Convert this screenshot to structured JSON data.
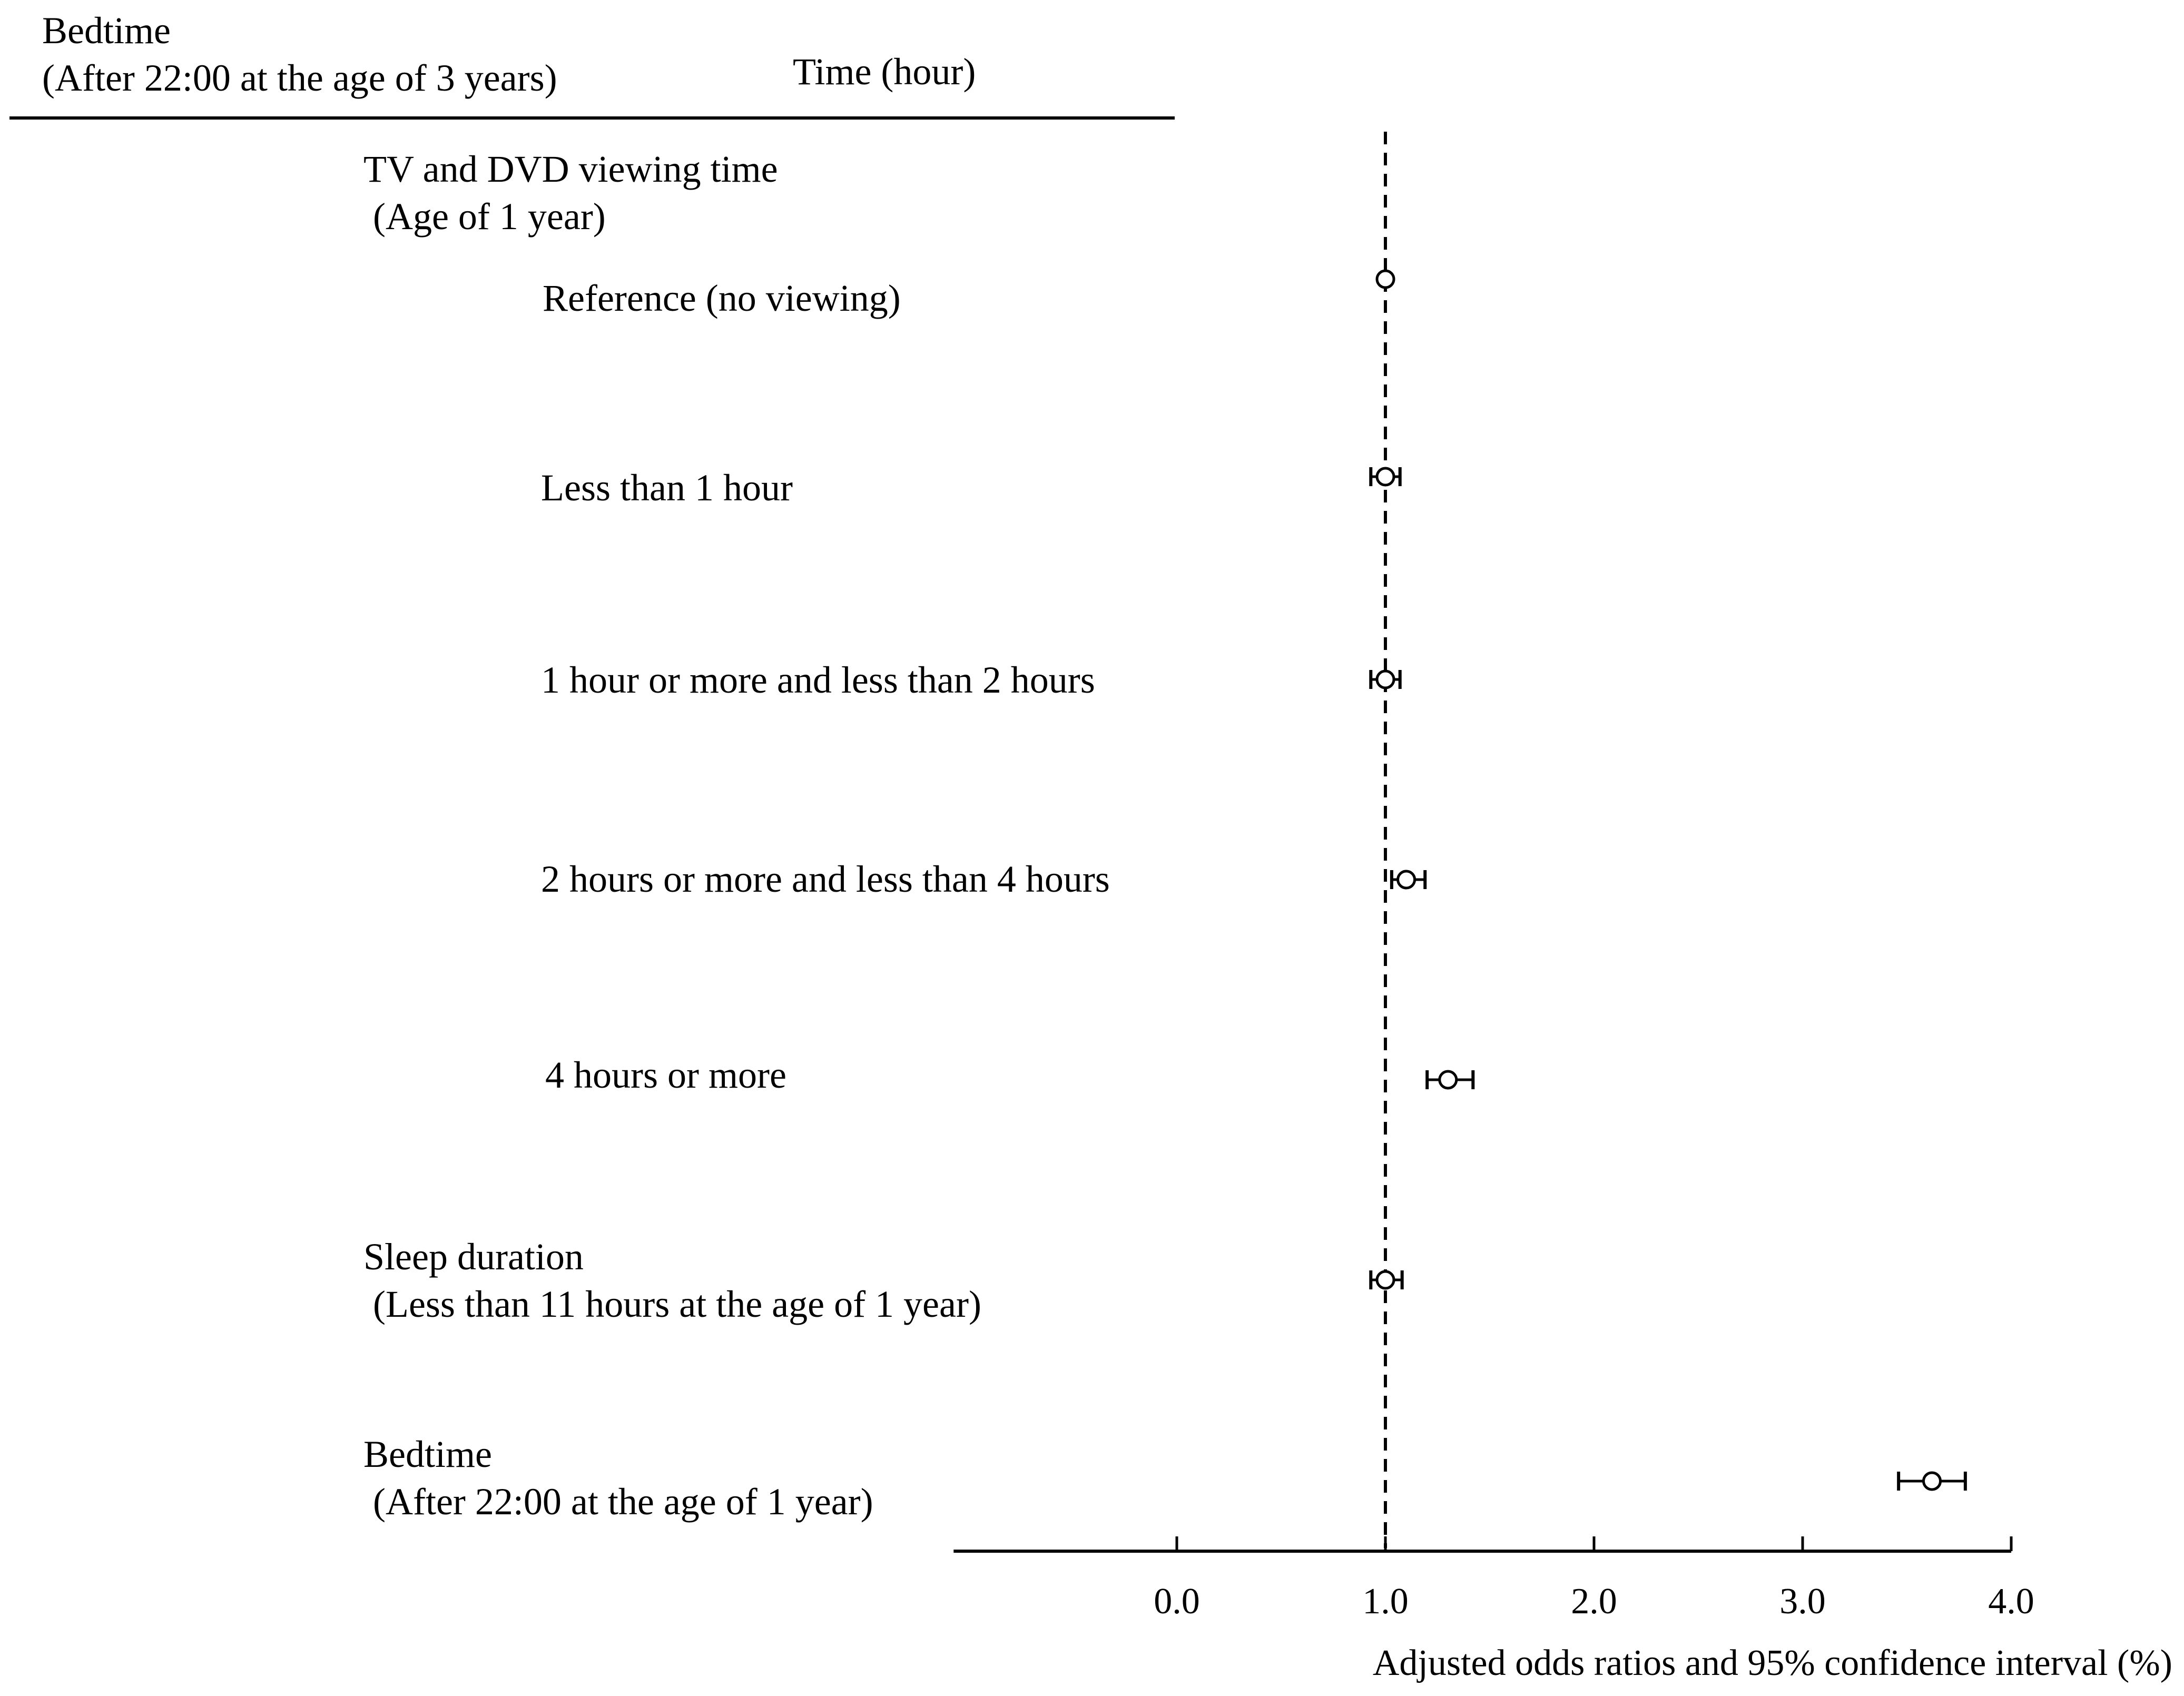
{
  "header": {
    "outcome_line1": "Bedtime",
    "outcome_line2": "(After 22:00 at the age of 3 years)",
    "unit_label": "Time (hour)"
  },
  "rows": [
    {
      "line1": "TV and DVD viewing time",
      "line2": "(Age of 1 year)"
    },
    {
      "line1": "Reference (no viewing)",
      "line2": ""
    },
    {
      "line1": "Less than 1 hour",
      "line2": ""
    },
    {
      "line1": "1 hour or more and less than 2 hours",
      "line2": ""
    },
    {
      "line1": "2 hours or more and less than 4 hours",
      "line2": ""
    },
    {
      "line1": "4 hours or more",
      "line2": ""
    },
    {
      "line1": "Sleep duration",
      "line2": "(Less than 11 hours at the age of 1 year)"
    },
    {
      "line1": "Bedtime",
      "line2": "(After 22:00 at the age of 1 year)"
    }
  ],
  "chart_data": {
    "type": "scatter",
    "plot_style": "forest",
    "categories": [
      "Reference (no viewing)",
      "Less than 1 hour",
      "1 hour or more and less than 2 hours",
      "2 hours or more and less than 4 hours",
      "4 hours or more",
      "Sleep duration (Less than 11 hours at the age of 1 year)",
      "Bedtime (After 22:00 at the age of 1 year)"
    ],
    "points": [
      {
        "category": "Reference (no viewing)",
        "or": 1.0,
        "lower": 1.0,
        "upper": 1.0
      },
      {
        "category": "Less than 1 hour",
        "or": 1.0,
        "lower": 0.93,
        "upper": 1.07
      },
      {
        "category": "1 hour or more and less than 2 hours",
        "or": 1.0,
        "lower": 0.93,
        "upper": 1.07
      },
      {
        "category": "2 hours or more and less than 4 hours",
        "or": 1.1,
        "lower": 1.03,
        "upper": 1.19
      },
      {
        "category": "4 hours or more",
        "or": 1.3,
        "lower": 1.2,
        "upper": 1.42
      },
      {
        "category": "Sleep duration (Less than 11 hours at the age of 1 year)",
        "or": 1.0,
        "lower": 0.93,
        "upper": 1.08
      },
      {
        "category": "Bedtime (After 22:00 at the age of 1 year)",
        "or": 3.62,
        "lower": 3.46,
        "upper": 3.78
      }
    ],
    "reference_line": 1.0,
    "xlim": [
      -1.07,
      4.0
    ],
    "xticks": [
      0.0,
      1.0,
      2.0,
      3.0,
      4.0
    ],
    "xtick_labels": [
      "0.0",
      "1.0",
      "2.0",
      "3.0",
      "4.0"
    ],
    "xlabel": "Adjusted odds ratios and 95% confidence interval (%)",
    "grid": false,
    "legend": "none"
  }
}
